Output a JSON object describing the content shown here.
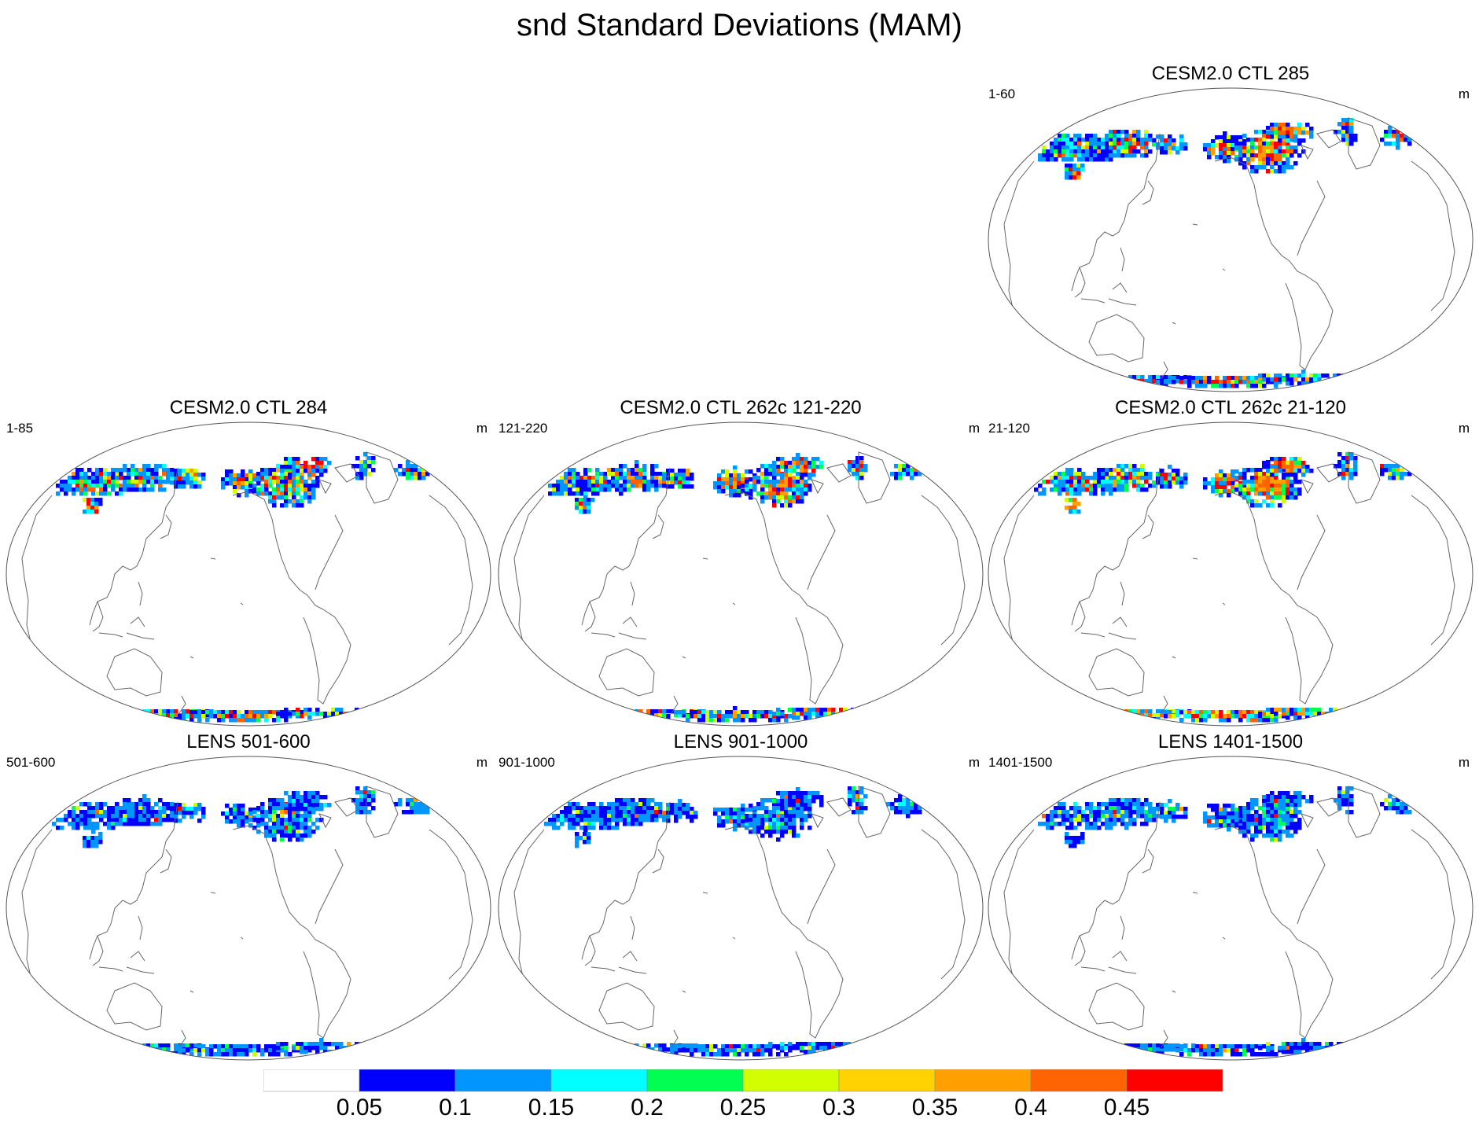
{
  "title": "snd Standard Deviations (MAM)",
  "units": "m",
  "panels": [
    {
      "id": "p285",
      "title": "CESM2.0 CTL 285",
      "left_label": "1-60",
      "intensity": 0.9
    },
    {
      "id": "p284",
      "title": "CESM2.0 CTL 284",
      "left_label": "1-85",
      "intensity": 0.8
    },
    {
      "id": "p262a",
      "title": "CESM2.0 CTL 262c 121-220",
      "left_label": "121-220",
      "intensity": 0.85
    },
    {
      "id": "p262b",
      "title": "CESM2.0 CTL 262c 21-120",
      "left_label": "21-120",
      "intensity": 1.0
    },
    {
      "id": "lens1",
      "title": "LENS 501-600",
      "left_label": "501-600",
      "intensity": 0.35
    },
    {
      "id": "lens2",
      "title": "LENS 901-1000",
      "left_label": "901-1000",
      "intensity": 0.3
    },
    {
      "id": "lens3",
      "title": "LENS 1401-1500",
      "left_label": "1401-1500",
      "intensity": 0.3
    }
  ],
  "colorbar": {
    "levels": [
      "0.05",
      "0.1",
      "0.15",
      "0.2",
      "0.25",
      "0.3",
      "0.35",
      "0.4",
      "0.45"
    ],
    "colors": [
      "#ffffff",
      "#0000ff",
      "#0096ff",
      "#00ffff",
      "#00ff50",
      "#d2ff00",
      "#ffd200",
      "#ffa000",
      "#ff6400",
      "#ff0000"
    ]
  }
}
